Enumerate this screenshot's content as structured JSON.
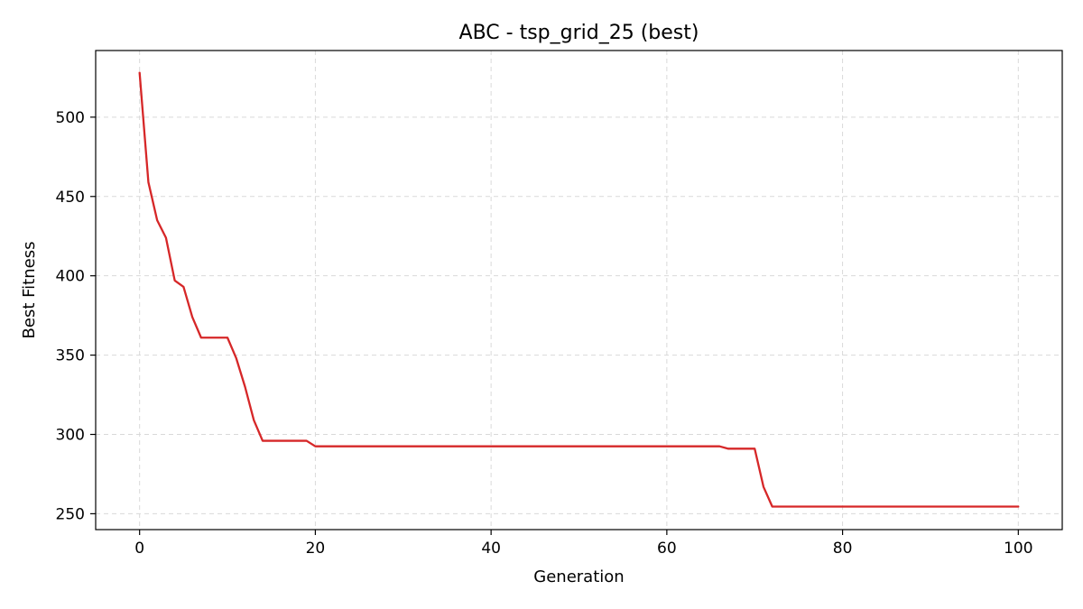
{
  "chart_data": {
    "type": "line",
    "title": "ABC - tsp_grid_25 (best)",
    "xlabel": "Generation",
    "ylabel": "Best Fitness",
    "xlim": [
      -5,
      105
    ],
    "ylim": [
      240,
      542
    ],
    "xticks": [
      0,
      20,
      40,
      60,
      80,
      100
    ],
    "yticks": [
      250,
      300,
      350,
      400,
      450,
      500
    ],
    "grid": true,
    "series": [
      {
        "color": "#d62728",
        "x": [
          0,
          1,
          2,
          3,
          4,
          5,
          6,
          7,
          8,
          9,
          10,
          11,
          12,
          13,
          14,
          15,
          16,
          17,
          18,
          19,
          20,
          21,
          22,
          23,
          24,
          25,
          26,
          27,
          28,
          29,
          30,
          31,
          32,
          33,
          34,
          35,
          36,
          37,
          38,
          39,
          40,
          41,
          42,
          43,
          44,
          45,
          46,
          47,
          48,
          49,
          50,
          51,
          52,
          53,
          54,
          55,
          56,
          57,
          58,
          59,
          60,
          61,
          62,
          63,
          64,
          65,
          66,
          67,
          68,
          69,
          70,
          71,
          72,
          73,
          74,
          75,
          76,
          77,
          78,
          79,
          80,
          81,
          82,
          83,
          84,
          85,
          86,
          87,
          88,
          89,
          90,
          91,
          92,
          93,
          94,
          95,
          96,
          97,
          98,
          99,
          100
        ],
        "y": [
          528,
          459,
          435,
          424,
          397,
          393,
          374,
          361,
          361,
          361,
          361,
          348,
          330,
          309,
          296,
          296,
          296,
          296,
          296,
          296,
          292.5,
          292.5,
          292.5,
          292.5,
          292.5,
          292.5,
          292.5,
          292.5,
          292.5,
          292.5,
          292.5,
          292.5,
          292.5,
          292.5,
          292.5,
          292.5,
          292.5,
          292.5,
          292.5,
          292.5,
          292.5,
          292.5,
          292.5,
          292.5,
          292.5,
          292.5,
          292.5,
          292.5,
          292.5,
          292.5,
          292.5,
          292.5,
          292.5,
          292.5,
          292.5,
          292.5,
          292.5,
          292.5,
          292.5,
          292.5,
          292.5,
          292.5,
          292.5,
          292.5,
          292.5,
          292.5,
          292.5,
          291,
          291,
          291,
          291,
          267,
          254.5,
          254.5,
          254.5,
          254.5,
          254.5,
          254.5,
          254.5,
          254.5,
          254.5,
          254.5,
          254.5,
          254.5,
          254.5,
          254.5,
          254.5,
          254.5,
          254.5,
          254.5,
          254.5,
          254.5,
          254.5,
          254.5,
          254.5,
          254.5,
          254.5,
          254.5,
          254.5,
          254.5,
          254.5
        ]
      }
    ]
  }
}
